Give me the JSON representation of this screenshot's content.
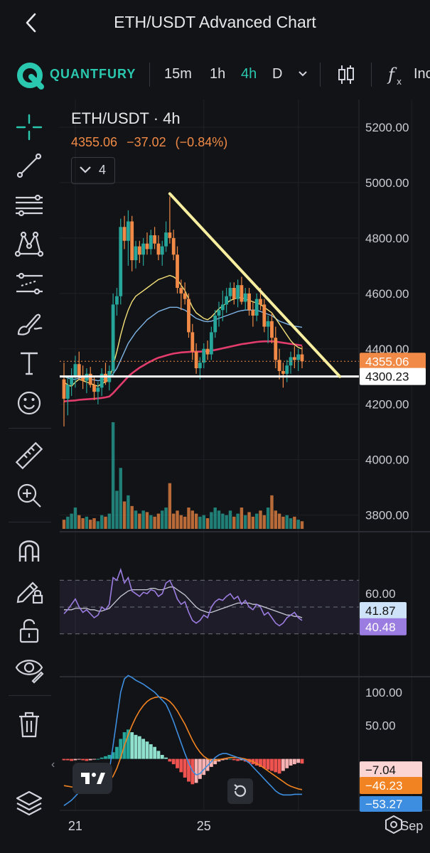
{
  "header": {
    "title": "ETH/USDT Advanced Chart"
  },
  "toolbar": {
    "brand": "QUANTFURY",
    "timeframes": [
      {
        "label": "15m",
        "active": false
      },
      {
        "label": "1h",
        "active": false
      },
      {
        "label": "4h",
        "active": true
      },
      {
        "label": "D",
        "active": false
      }
    ],
    "indicators_label": "Inc"
  },
  "sidebar": {
    "tools": [
      "crosshair-icon",
      "trend-line-icon",
      "fib-lines-icon",
      "pattern-icon",
      "prediction-icon",
      "brush-icon",
      "text-icon",
      "emoji-icon",
      "ruler-icon",
      "zoom-in-icon",
      "magnet-icon",
      "lock-drawings-icon",
      "unlock-icon",
      "eye-icon",
      "trash-icon",
      "layers-icon"
    ]
  },
  "legend": {
    "symbol": "ETH/USDT · 4h",
    "price": "4355.06",
    "change": "−37.02",
    "change_pct": "(−0.84%)",
    "indicator_count": "4"
  },
  "colors": {
    "up": "#26a69a",
    "up_light": "#8fe0cc",
    "down": "#f08a46",
    "down_light": "#f7b3b3",
    "ma_yellow": "#f5e27a",
    "ma_blue": "#7fb4e6",
    "ma_pink": "#e23c6d",
    "rsi": "#9b7ce0",
    "rsi_ma": "#c7c9d6",
    "macd": "#3d8ee0",
    "signal": "#f28322"
  },
  "chart_data": [
    {
      "type": "candlestick",
      "title": "ETH/USDT · 4h",
      "ylim": [
        3740,
        5300
      ],
      "price_ticks": [
        "5200.00",
        "5000.00",
        "4800.00",
        "4600.00",
        "4400.00",
        "4200.00",
        "4000.00",
        "3800.00"
      ],
      "price_tick_values": [
        5200,
        5000,
        4800,
        4600,
        4400,
        4200,
        4000,
        3800
      ],
      "x_ticks": [
        "21",
        "25",
        "Sep"
      ],
      "x_tick_index": [
        3,
        37,
        92
      ],
      "candles": [
        [
          4290,
          4350,
          4120,
          4220
        ],
        [
          4220,
          4300,
          4160,
          4270
        ],
        [
          4270,
          4330,
          4230,
          4300
        ],
        [
          4300,
          4375,
          4260,
          4345
        ],
        [
          4345,
          4390,
          4290,
          4300
        ],
        [
          4300,
          4340,
          4255,
          4285
        ],
        [
          4285,
          4330,
          4240,
          4310
        ],
        [
          4310,
          4335,
          4260,
          4270
        ],
        [
          4270,
          4300,
          4215,
          4245
        ],
        [
          4245,
          4280,
          4200,
          4260
        ],
        [
          4260,
          4330,
          4230,
          4310
        ],
        [
          4310,
          4350,
          4270,
          4280
        ],
        [
          4280,
          4340,
          4250,
          4320
        ],
        [
          4320,
          4600,
          4300,
          4560
        ],
        [
          4560,
          4620,
          4520,
          4590
        ],
        [
          4590,
          4870,
          4560,
          4840
        ],
        [
          4840,
          4880,
          4760,
          4790
        ],
        [
          4790,
          4900,
          4700,
          4860
        ],
        [
          4860,
          4880,
          4680,
          4720
        ],
        [
          4720,
          4790,
          4690,
          4770
        ],
        [
          4770,
          4790,
          4710,
          4740
        ],
        [
          4740,
          4800,
          4700,
          4780
        ],
        [
          4780,
          4820,
          4740,
          4760
        ],
        [
          4760,
          4830,
          4740,
          4810
        ],
        [
          4810,
          4840,
          4760,
          4780
        ],
        [
          4780,
          4810,
          4720,
          4740
        ],
        [
          4740,
          4790,
          4700,
          4770
        ],
        [
          4770,
          4860,
          4750,
          4820
        ],
        [
          4820,
          4950,
          4780,
          4800
        ],
        [
          4800,
          4830,
          4720,
          4740
        ],
        [
          4740,
          4770,
          4600,
          4620
        ],
        [
          4620,
          4650,
          4540,
          4600
        ],
        [
          4600,
          4640,
          4560,
          4580
        ],
        [
          4580,
          4600,
          4440,
          4460
        ],
        [
          4460,
          4490,
          4360,
          4390
        ],
        [
          4390,
          4420,
          4310,
          4330
        ],
        [
          4330,
          4370,
          4290,
          4350
        ],
        [
          4350,
          4420,
          4330,
          4400
        ],
        [
          4400,
          4430,
          4360,
          4380
        ],
        [
          4380,
          4480,
          4360,
          4460
        ],
        [
          4460,
          4540,
          4440,
          4520
        ],
        [
          4520,
          4570,
          4480,
          4540
        ],
        [
          4540,
          4610,
          4500,
          4560
        ],
        [
          4560,
          4620,
          4530,
          4590
        ],
        [
          4590,
          4640,
          4570,
          4620
        ],
        [
          4620,
          4640,
          4560,
          4580
        ],
        [
          4580,
          4650,
          4550,
          4630
        ],
        [
          4630,
          4660,
          4560,
          4570
        ],
        [
          4570,
          4620,
          4540,
          4600
        ],
        [
          4600,
          4620,
          4520,
          4540
        ],
        [
          4540,
          4570,
          4480,
          4520
        ],
        [
          4520,
          4600,
          4500,
          4580
        ],
        [
          4580,
          4620,
          4540,
          4560
        ],
        [
          4560,
          4580,
          4460,
          4480
        ],
        [
          4480,
          4520,
          4420,
          4500
        ],
        [
          4500,
          4530,
          4420,
          4440
        ],
        [
          4440,
          4480,
          4330,
          4360
        ],
        [
          4360,
          4400,
          4290,
          4320
        ],
        [
          4320,
          4350,
          4260,
          4310
        ],
        [
          4310,
          4360,
          4280,
          4340
        ],
        [
          4340,
          4390,
          4310,
          4370
        ],
        [
          4370,
          4410,
          4330,
          4360
        ],
        [
          4360,
          4400,
          4320,
          4380
        ],
        [
          4380,
          4410,
          4330,
          4355
        ]
      ],
      "ma_yellow": [
        4280,
        4270,
        4265,
        4280,
        4290,
        4285,
        4280,
        4275,
        4270,
        4265,
        4275,
        4280,
        4290,
        4340,
        4390,
        4450,
        4500,
        4540,
        4570,
        4590,
        4600,
        4610,
        4620,
        4630,
        4640,
        4650,
        4655,
        4660,
        4665,
        4660,
        4650,
        4630,
        4610,
        4580,
        4550,
        4530,
        4520,
        4510,
        4505,
        4515,
        4530,
        4545,
        4555,
        4565,
        4575,
        4580,
        4585,
        4585,
        4580,
        4575,
        4570,
        4565,
        4560,
        4550,
        4540,
        4530,
        4510,
        4490,
        4470,
        4450,
        4430,
        4415,
        4405,
        4400
      ],
      "ma_blue": [
        4300,
        4295,
        4290,
        4290,
        4295,
        4295,
        4293,
        4290,
        4288,
        4285,
        4288,
        4290,
        4293,
        4310,
        4330,
        4360,
        4390,
        4420,
        4440,
        4460,
        4475,
        4490,
        4505,
        4515,
        4525,
        4535,
        4540,
        4545,
        4550,
        4550,
        4550,
        4545,
        4540,
        4530,
        4520,
        4510,
        4505,
        4500,
        4498,
        4500,
        4505,
        4510,
        4515,
        4520,
        4525,
        4530,
        4535,
        4538,
        4540,
        4540,
        4540,
        4540,
        4535,
        4530,
        4525,
        4520,
        4510,
        4500,
        4495,
        4490,
        4485,
        4482,
        4480,
        4478
      ],
      "ma_pink": [
        4210,
        4212,
        4213,
        4214,
        4216,
        4217,
        4218,
        4219,
        4220,
        4221,
        4223,
        4225,
        4228,
        4240,
        4255,
        4270,
        4285,
        4300,
        4312,
        4322,
        4332,
        4340,
        4348,
        4355,
        4362,
        4368,
        4372,
        4376,
        4380,
        4383,
        4385,
        4387,
        4388,
        4389,
        4390,
        4390,
        4390,
        4391,
        4392,
        4394,
        4396,
        4399,
        4402,
        4405,
        4408,
        4411,
        4414,
        4417,
        4419,
        4421,
        4423,
        4425,
        4426,
        4427,
        4427,
        4427,
        4426,
        4424,
        4422,
        4420,
        4418,
        4416,
        4414,
        4412
      ],
      "trend_line": {
        "from": [
          28,
          4960
        ],
        "to": [
          73,
          4300
        ]
      },
      "horizontal_line": 4300.23,
      "last_price_label": "4355.06",
      "line_label": "4300.23",
      "volume": [
        6,
        8,
        10,
        14,
        9,
        7,
        8,
        6,
        7,
        5,
        9,
        8,
        10,
        70,
        25,
        40,
        18,
        22,
        15,
        12,
        10,
        12,
        11,
        9,
        8,
        10,
        12,
        14,
        30,
        10,
        12,
        9,
        8,
        14,
        12,
        10,
        8,
        9,
        7,
        11,
        14,
        12,
        10,
        9,
        12,
        8,
        10,
        14,
        9,
        11,
        8,
        10,
        12,
        9,
        14,
        22,
        12,
        10,
        8,
        9,
        7,
        8,
        6,
        5
      ]
    },
    {
      "type": "line",
      "title": "RSI",
      "ylim": [
        0,
        100
      ],
      "bands": [
        30,
        50,
        70
      ],
      "tick_label": "60.00",
      "tick_value": 60,
      "rsi": [
        45,
        48,
        52,
        56,
        50,
        46,
        48,
        45,
        42,
        44,
        50,
        48,
        52,
        72,
        70,
        78,
        68,
        72,
        62,
        60,
        58,
        61,
        60,
        63,
        62,
        58,
        60,
        68,
        70,
        64,
        56,
        52,
        54,
        46,
        40,
        38,
        40,
        44,
        42,
        50,
        54,
        56,
        55,
        58,
        60,
        56,
        58,
        52,
        55,
        50,
        48,
        52,
        50,
        44,
        46,
        42,
        38,
        36,
        38,
        42,
        44,
        46,
        42,
        40
      ],
      "rsi_ma": [
        48,
        48,
        48,
        49,
        49,
        49,
        49,
        48,
        48,
        47,
        47,
        48,
        49,
        52,
        55,
        58,
        60,
        62,
        63,
        63,
        63,
        63,
        63,
        64,
        64,
        63,
        63,
        64,
        65,
        65,
        63,
        61,
        59,
        56,
        53,
        50,
        48,
        47,
        46,
        46,
        47,
        48,
        49,
        50,
        51,
        52,
        53,
        53,
        53,
        53,
        52,
        52,
        51,
        50,
        49,
        48,
        47,
        46,
        45,
        44,
        44,
        43,
        43,
        42
      ],
      "rsi_label": "40.48",
      "rsi_ma_label": "41.87"
    },
    {
      "type": "bar",
      "title": "MACD",
      "ylim": [
        -75,
        120
      ],
      "tick_labels": [
        "100.00",
        "50.00"
      ],
      "tick_values": [
        100,
        50
      ],
      "histogram": [
        -2,
        -2,
        -3,
        -2,
        -1,
        -2,
        -3,
        -2,
        -1,
        0,
        2,
        4,
        6,
        10,
        18,
        30,
        40,
        44,
        40,
        36,
        34,
        30,
        26,
        22,
        18,
        12,
        6,
        2,
        -4,
        -8,
        -14,
        -20,
        -28,
        -34,
        -38,
        -36,
        -30,
        -24,
        -18,
        -12,
        -8,
        -4,
        -2,
        -1,
        0,
        -2,
        -3,
        -2,
        -4,
        -6,
        -8,
        -10,
        -12,
        -14,
        -16,
        -18,
        -20,
        -22,
        -18,
        -14,
        -10,
        -8,
        -6,
        -7
      ],
      "macd": [
        -70,
        -66,
        -62,
        -56,
        -50,
        -46,
        -42,
        -40,
        -38,
        -36,
        -30,
        -24,
        -18,
        20,
        60,
        100,
        120,
        125,
        122,
        118,
        115,
        112,
        108,
        104,
        100,
        94,
        88,
        82,
        70,
        56,
        40,
        24,
        8,
        -6,
        -18,
        -24,
        -22,
        -16,
        -10,
        -4,
        2,
        6,
        8,
        8,
        6,
        4,
        2,
        0,
        -2,
        -6,
        -12,
        -18,
        -24,
        -30,
        -36,
        -42,
        -48,
        -52,
        -54,
        -54,
        -54,
        -53,
        -53,
        -53
      ],
      "signal": [
        -40,
        -41,
        -42,
        -43,
        -44,
        -44,
        -44,
        -43,
        -42,
        -41,
        -39,
        -36,
        -33,
        -26,
        -14,
        2,
        20,
        36,
        50,
        62,
        72,
        80,
        86,
        90,
        92,
        93,
        92,
        90,
        86,
        80,
        72,
        62,
        52,
        40,
        28,
        18,
        10,
        4,
        0,
        -2,
        -2,
        -1,
        0,
        1,
        2,
        2,
        2,
        1,
        0,
        -2,
        -4,
        -7,
        -10,
        -14,
        -18,
        -22,
        -26,
        -30,
        -34,
        -38,
        -41,
        -43,
        -45,
        -46
      ],
      "hist_label": "−7.04",
      "macd_label": "−53.27",
      "signal_label": "−46.23"
    }
  ]
}
